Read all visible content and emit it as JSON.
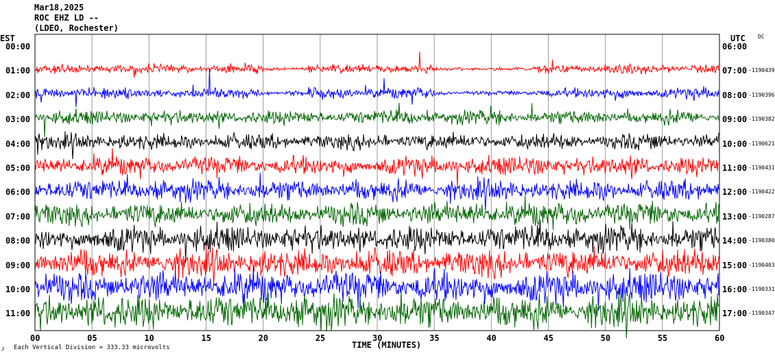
{
  "header": {
    "date": "Mar18,2025",
    "station": "ROC EHZ LD --",
    "network": "(LDEO, Rochester)"
  },
  "left_axis_title": "EST",
  "right_axis_title": "UTC",
  "dc_label": "DC",
  "footer": {
    "scale_note": "Each Vertical Division = 333.33 microvolts",
    "corner_mark": "J"
  },
  "chart_data": {
    "type": "line",
    "subtype": "helicorder",
    "xlabel": "TIME (MINUTES)",
    "xlim": [
      0,
      60
    ],
    "x_ticks": [
      "00",
      "05",
      "10",
      "15",
      "20",
      "25",
      "30",
      "35",
      "40",
      "45",
      "50",
      "55",
      "60"
    ],
    "trace_colors": [
      "#000000",
      "#ff0000",
      "#0000ff",
      "#006400"
    ],
    "rows": [
      {
        "est": "00:00",
        "utc": "06:00",
        "dc": "",
        "color": "#000000"
      },
      {
        "est": "01:00",
        "utc": "07:00",
        "dc": "-1190439",
        "color": "#ff0000"
      },
      {
        "est": "02:00",
        "utc": "08:00",
        "dc": "-1190396",
        "color": "#0000ff"
      },
      {
        "est": "03:00",
        "utc": "09:00",
        "dc": "-1190382",
        "color": "#006400"
      },
      {
        "est": "04:00",
        "utc": "10:00",
        "dc": "-1190621",
        "color": "#000000"
      },
      {
        "est": "05:00",
        "utc": "11:00",
        "dc": "-1190431",
        "color": "#ff0000"
      },
      {
        "est": "06:00",
        "utc": "12:00",
        "dc": "-1190422",
        "color": "#0000ff"
      },
      {
        "est": "07:00",
        "utc": "13:00",
        "dc": "-1190287",
        "color": "#006400"
      },
      {
        "est": "08:00",
        "utc": "14:00",
        "dc": "-1190380",
        "color": "#000000"
      },
      {
        "est": "09:00",
        "utc": "15:00",
        "dc": "-1190403",
        "color": "#ff0000"
      },
      {
        "est": "10:00",
        "utc": "16:00",
        "dc": "-1190331",
        "color": "#0000ff"
      },
      {
        "est": "11:00",
        "utc": "17:00",
        "dc": "-1190347",
        "color": "#006400"
      }
    ]
  }
}
